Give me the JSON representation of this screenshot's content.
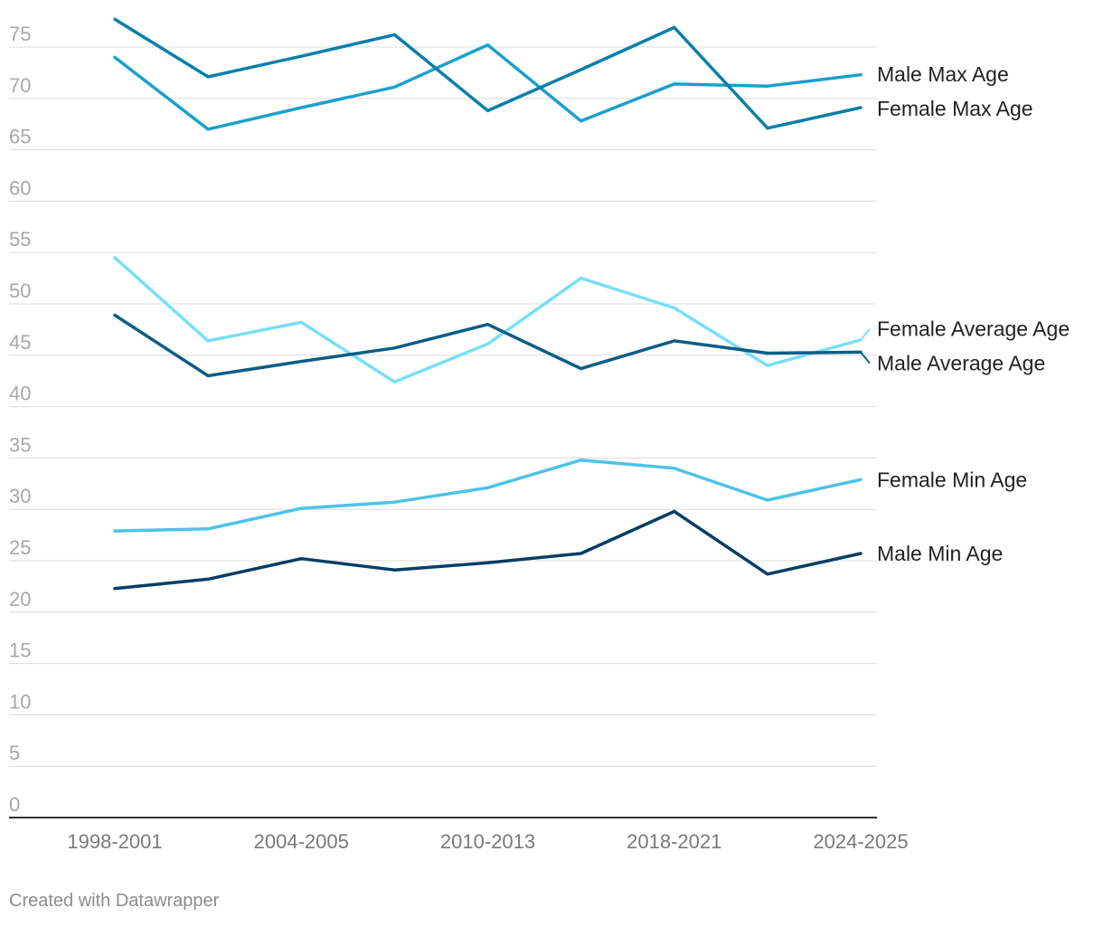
{
  "chart_data": {
    "type": "line",
    "title": "",
    "xlabel": "",
    "ylabel": "",
    "ylim": [
      0,
      75
    ],
    "yticks": [
      0,
      5,
      10,
      15,
      20,
      25,
      30,
      35,
      40,
      45,
      50,
      55,
      60,
      65,
      70,
      75
    ],
    "grid": true,
    "legend": "direct labels at right end of lines",
    "x": [
      "1998-2001",
      "",
      "2004-2005",
      "",
      "2010-2013",
      "",
      "2018-2021",
      "",
      "2024-2025"
    ],
    "x_tick_labels": [
      "1998-2001",
      "2004-2005",
      "2010-2013",
      "2018-2021",
      "2024-2025"
    ],
    "series": [
      {
        "name": "Male Max Age",
        "color": "#1aa0cc",
        "values": [
          74.0,
          67.0,
          69.1,
          71.1,
          75.2,
          67.8,
          71.4,
          71.2,
          72.3
        ]
      },
      {
        "name": "Female Max Age",
        "color": "#0a7fa8",
        "values": [
          77.7,
          72.1,
          74.1,
          76.2,
          68.8,
          72.8,
          76.9,
          67.1,
          69.1
        ]
      },
      {
        "name": "Female Average Age",
        "color": "#78dff7",
        "values": [
          54.5,
          46.4,
          48.2,
          42.4,
          46.1,
          52.5,
          49.6,
          44.0,
          46.5
        ]
      },
      {
        "name": "Male Average Age",
        "color": "#0a5e85",
        "values": [
          48.9,
          43.0,
          44.4,
          45.7,
          48.0,
          43.7,
          46.4,
          45.2,
          45.3
        ]
      },
      {
        "name": "Female Min Age",
        "color": "#4ec2e8",
        "values": [
          27.9,
          28.1,
          30.1,
          30.7,
          32.1,
          34.8,
          34.0,
          30.9,
          32.9
        ]
      },
      {
        "name": "Male Min Age",
        "color": "#053e64",
        "values": [
          22.3,
          23.2,
          25.2,
          24.1,
          24.8,
          25.7,
          29.8,
          23.7,
          25.7
        ]
      }
    ]
  },
  "footer": {
    "credit": "Created with Datawrapper"
  }
}
